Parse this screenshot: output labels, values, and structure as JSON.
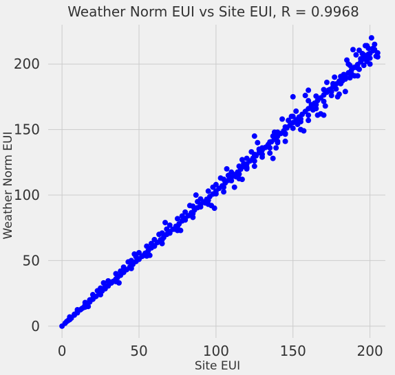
{
  "chart_data": {
    "type": "scatter",
    "title": "Weather Norm EUI vs Site EUI, R = 0.9968",
    "xlabel": "Site EUI",
    "ylabel": "Weather Norm EUI",
    "xlim": [
      -9,
      210
    ],
    "ylim": [
      -9,
      230
    ],
    "xticks": [
      0,
      50,
      100,
      150,
      200
    ],
    "yticks": [
      0,
      50,
      100,
      150,
      200
    ],
    "grid": true,
    "point_color": "#0000ff",
    "background_color": "#f0f0f0",
    "grid_color": "#cbcbcb",
    "series": [
      {
        "points": [
          [
            0,
            0
          ],
          [
            2,
            2.2
          ],
          [
            4,
            4.3
          ],
          [
            6,
            6.1
          ],
          [
            8,
            8.4
          ],
          [
            10,
            10.2
          ],
          [
            12,
            12.5
          ],
          [
            14,
            14.2
          ],
          [
            16,
            16.6
          ],
          [
            18,
            18.4
          ],
          [
            20,
            20.5
          ],
          [
            22,
            22.6
          ],
          [
            24,
            24.3
          ],
          [
            26,
            26.8
          ],
          [
            28,
            28.5
          ],
          [
            30,
            30.7
          ],
          [
            32,
            32.9
          ],
          [
            34,
            34.6
          ],
          [
            36,
            37.0
          ],
          [
            38,
            38.8
          ],
          [
            40,
            41.0
          ],
          [
            42,
            43.1
          ],
          [
            44,
            45.0
          ],
          [
            46,
            47.2
          ],
          [
            48,
            49.3
          ],
          [
            50,
            51.4
          ],
          [
            52,
            53.2
          ],
          [
            54,
            55.6
          ],
          [
            56,
            57.5
          ],
          [
            58,
            59.7
          ],
          [
            60,
            61.5
          ],
          [
            62,
            63.8
          ],
          [
            64,
            65.9
          ],
          [
            66,
            67.6
          ],
          [
            68,
            70.0
          ],
          [
            70,
            72.1
          ],
          [
            72,
            73.9
          ],
          [
            74,
            76.2
          ],
          [
            76,
            78.0
          ],
          [
            78,
            80.3
          ],
          [
            80,
            82.4
          ],
          [
            82,
            84.2
          ],
          [
            84,
            86.5
          ],
          [
            86,
            88.6
          ],
          [
            88,
            90.4
          ],
          [
            90,
            92.8
          ],
          [
            92,
            94.7
          ],
          [
            94,
            96.8
          ],
          [
            96,
            98.9
          ],
          [
            98,
            100.8
          ],
          [
            100,
            103.0
          ],
          [
            102,
            105.1
          ],
          [
            104,
            107.0
          ],
          [
            106,
            109.3
          ],
          [
            108,
            111.2
          ],
          [
            110,
            113.4
          ],
          [
            112,
            115.6
          ],
          [
            114,
            117.5
          ],
          [
            116,
            119.7
          ],
          [
            118,
            121.8
          ],
          [
            120,
            123.7
          ],
          [
            122,
            126.0
          ],
          [
            124,
            128.1
          ],
          [
            126,
            130.0
          ],
          [
            128,
            132.3
          ],
          [
            130,
            134.4
          ],
          [
            132,
            136.3
          ],
          [
            134,
            138.6
          ],
          [
            136,
            140.7
          ],
          [
            138,
            142.6
          ],
          [
            140,
            144.9
          ],
          [
            142,
            147.0
          ],
          [
            144,
            149.0
          ],
          [
            146,
            151.2
          ],
          [
            148,
            153.3
          ],
          [
            150,
            155.3
          ],
          [
            152,
            157.5
          ],
          [
            154,
            159.6
          ],
          [
            156,
            161.6
          ],
          [
            158,
            163.8
          ],
          [
            160,
            165.9
          ],
          [
            162,
            168.0
          ],
          [
            164,
            170.1
          ],
          [
            166,
            172.2
          ],
          [
            168,
            174.2
          ],
          [
            170,
            176.4
          ],
          [
            172,
            178.5
          ],
          [
            174,
            180.6
          ],
          [
            176,
            182.7
          ],
          [
            178,
            184.8
          ],
          [
            180,
            186.9
          ],
          [
            182,
            189.0
          ],
          [
            184,
            191.2
          ],
          [
            186,
            193.3
          ],
          [
            188,
            195.4
          ],
          [
            190,
            197.5
          ],
          [
            192,
            199.6
          ],
          [
            194,
            201.7
          ],
          [
            196,
            203.9
          ],
          [
            198,
            206.0
          ],
          [
            200,
            208.1
          ],
          [
            202,
            210.2
          ],
          [
            204,
            206.0
          ],
          [
            205,
            205.5
          ],
          [
            201,
            220.0
          ],
          [
            203,
            215.0
          ],
          [
            199,
            212.0
          ],
          [
            197,
            214.0
          ],
          [
            195,
            208.0
          ],
          [
            193,
            210.5
          ],
          [
            189,
            211.0
          ],
          [
            186,
            200.0
          ],
          [
            185,
            203.0
          ],
          [
            181,
            190.5
          ],
          [
            187,
            189.5
          ],
          [
            194,
            204.0
          ],
          [
            198,
            202.0
          ],
          [
            200,
            204.5
          ],
          [
            196,
            199.0
          ],
          [
            192,
            197.0
          ],
          [
            191,
            207.0
          ],
          [
            178,
            181.0
          ],
          [
            182,
            187.0
          ],
          [
            184,
            188.5
          ],
          [
            173,
            180.0
          ],
          [
            188,
            192.5
          ],
          [
            195,
            203.5
          ],
          [
            199,
            207.5
          ],
          [
            130,
            136.0
          ],
          [
            135,
            140.5
          ],
          [
            145,
            152.0
          ],
          [
            150,
            160.0
          ],
          [
            155,
            158.0
          ],
          [
            160,
            172.0
          ],
          [
            165,
            169.0
          ],
          [
            170,
            180.5
          ],
          [
            175,
            179.0
          ],
          [
            140,
            148.0
          ],
          [
            125,
            131.0
          ],
          [
            120,
            128.0
          ],
          [
            115,
            122.0
          ],
          [
            110,
            117.5
          ],
          [
            105,
            112.0
          ],
          [
            100,
            108.0
          ],
          [
            95,
            103.0
          ],
          [
            90,
            97.0
          ],
          [
            85,
            91.5
          ],
          [
            80,
            87.0
          ],
          [
            75,
            82.0
          ],
          [
            70,
            77.0
          ],
          [
            65,
            71.0
          ],
          [
            60,
            66.0
          ],
          [
            55,
            61.0
          ],
          [
            50,
            56.0
          ],
          [
            45,
            50.0
          ],
          [
            40,
            45.0
          ],
          [
            35,
            40.0
          ],
          [
            30,
            34.5
          ],
          [
            25,
            29.0
          ],
          [
            20,
            24.0
          ],
          [
            15,
            18.0
          ],
          [
            10,
            12.5
          ],
          [
            5,
            7.0
          ],
          [
            130,
            131.0
          ],
          [
            135,
            136.0
          ],
          [
            145,
            146.5
          ],
          [
            150,
            151.0
          ],
          [
            155,
            156.0
          ],
          [
            160,
            161.0
          ],
          [
            165,
            166.0
          ],
          [
            170,
            171.5
          ],
          [
            175,
            176.0
          ],
          [
            140,
            141.0
          ],
          [
            125,
            126.0
          ],
          [
            120,
            121.0
          ],
          [
            115,
            116.0
          ],
          [
            110,
            111.0
          ],
          [
            105,
            106.0
          ],
          [
            100,
            101.0
          ],
          [
            95,
            96.0
          ],
          [
            90,
            91.0
          ],
          [
            85,
            86.0
          ],
          [
            80,
            81.0
          ],
          [
            75,
            76.0
          ],
          [
            70,
            71.0
          ],
          [
            65,
            66.0
          ],
          [
            60,
            61.0
          ],
          [
            55,
            56.0
          ],
          [
            50,
            51.0
          ],
          [
            45,
            46.0
          ],
          [
            40,
            41.0
          ],
          [
            35,
            36.0
          ],
          [
            30,
            31.0
          ],
          [
            25,
            26.0
          ],
          [
            20,
            21.0
          ],
          [
            15,
            16.0
          ],
          [
            10,
            11.0
          ],
          [
            5,
            6.0
          ],
          [
            177,
            190.0
          ],
          [
            165,
            175.5
          ],
          [
            152,
            164.0
          ],
          [
            145,
            147.0
          ],
          [
            137,
            145.0
          ],
          [
            128,
            135.0
          ],
          [
            118,
            124.0
          ],
          [
            108,
            115.0
          ],
          [
            98,
            106.0
          ],
          [
            88,
            95.0
          ],
          [
            78,
            84.0
          ],
          [
            68,
            74.0
          ],
          [
            58,
            63.0
          ],
          [
            48,
            53.0
          ],
          [
            38,
            42.0
          ],
          [
            28,
            31.0
          ],
          [
            18,
            20.0
          ],
          [
            8,
            9.0
          ],
          [
            143,
            158.0
          ],
          [
            158,
            176.0
          ],
          [
            168,
            162.0
          ],
          [
            157,
            149.0
          ],
          [
            149,
            160.0
          ],
          [
            139,
            136.0
          ],
          [
            127,
            140.0
          ],
          [
            117,
            112.0
          ],
          [
            107,
            120.0
          ],
          [
            97,
            92.0
          ],
          [
            87,
            100.0
          ],
          [
            77,
            73.0
          ],
          [
            67,
            79.0
          ],
          [
            57,
            54.0
          ],
          [
            47,
            55.0
          ],
          [
            37,
            33.0
          ],
          [
            27,
            33.0
          ],
          [
            17,
            15.0
          ],
          [
            170,
            161.0
          ],
          [
            180,
            177.0
          ],
          [
            160,
            157.0
          ],
          [
            155,
            150.0
          ],
          [
            145,
            141.0
          ],
          [
            135,
            132.0
          ],
          [
            125,
            122.0
          ],
          [
            115,
            112.5
          ],
          [
            105,
            102.5
          ],
          [
            95,
            93.0
          ],
          [
            85,
            83.0
          ],
          [
            75,
            73.0
          ],
          [
            65,
            63.0
          ],
          [
            55,
            53.5
          ],
          [
            45,
            44.0
          ],
          [
            35,
            34.0
          ],
          [
            25,
            24.0
          ],
          [
            15,
            14.5
          ],
          [
            5,
            5.0
          ],
          [
            190,
            191.0
          ],
          [
            195,
            204.5
          ],
          [
            198,
            214.0
          ],
          [
            202,
            212.0
          ],
          [
            205,
            208.5
          ],
          [
            193,
            196.0
          ],
          [
            183,
            192.0
          ],
          [
            181,
            185.0
          ],
          [
            172,
            186.0
          ],
          [
            163,
            165.0
          ],
          [
            153,
            154.0
          ],
          [
            147,
            157.0
          ],
          [
            138,
            148.0
          ],
          [
            133,
            137.0
          ],
          [
            123,
            133.0
          ],
          [
            113,
            114.0
          ],
          [
            103,
            113.0
          ],
          [
            93,
            94.0
          ],
          [
            83,
            92.0
          ],
          [
            73,
            74.0
          ],
          [
            63,
            70.0
          ],
          [
            53,
            54.0
          ],
          [
            43,
            49.0
          ],
          [
            33,
            34.0
          ],
          [
            23,
            27.0
          ],
          [
            13,
            13.5
          ],
          [
            3,
            3.5
          ],
          [
            160,
            180.0
          ],
          [
            125,
            145.0
          ],
          [
            150,
            175.0
          ],
          [
            140,
            140.0
          ],
          [
            120,
            120.0
          ],
          [
            130,
            129.0
          ],
          [
            99,
            90.0
          ],
          [
            112,
            106.0
          ],
          [
            117,
            127.0
          ],
          [
            137,
            128.0
          ],
          [
            162,
            169.0
          ],
          [
            166,
            161.0
          ],
          [
            171,
            168.0
          ],
          [
            176,
            185.0
          ],
          [
            179,
            175.0
          ],
          [
            184,
            179.0
          ],
          [
            187,
            199.0
          ],
          [
            192,
            191.0
          ],
          [
            196,
            207.0
          ],
          [
            200,
            200.0
          ],
          [
            203,
            211.0
          ]
        ]
      }
    ]
  }
}
